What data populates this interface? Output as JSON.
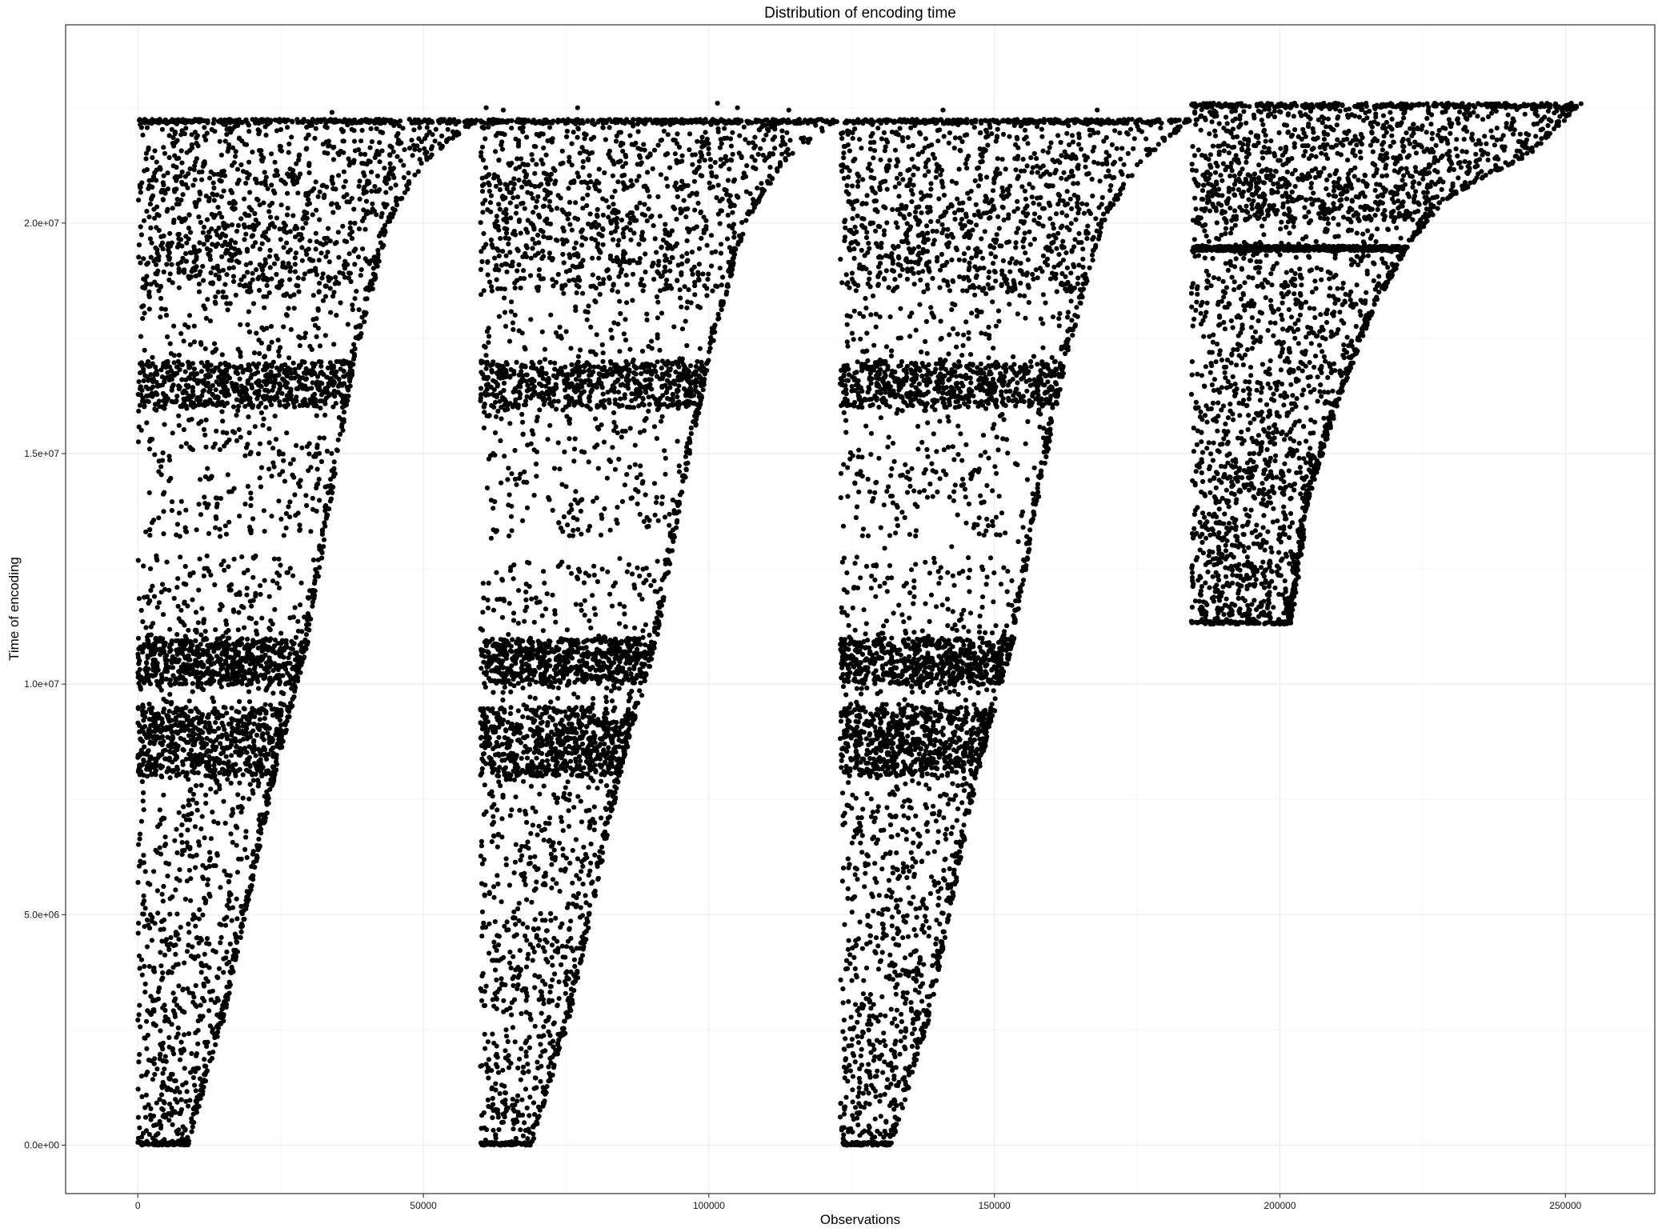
{
  "chart_data": {
    "type": "scatter",
    "title": "Distribution of encoding time",
    "xlabel": "Observations",
    "ylabel": "Time of encoding",
    "xlim": [
      -12650,
      265650
    ],
    "ylim": [
      -1050000,
      24300000
    ],
    "x_ticks": [
      0,
      50000,
      100000,
      150000,
      200000,
      250000
    ],
    "x_tick_labels": [
      "0",
      "50000",
      "100000",
      "150000",
      "200000",
      "250000"
    ],
    "y_ticks": [
      0,
      5000000,
      10000000,
      15000000,
      20000000
    ],
    "y_tick_labels": [
      "0.0e+00",
      "5.0e+06",
      "1.0e+07",
      "1.5e+07",
      "2.0e+07"
    ],
    "grid": true,
    "legend": "none",
    "point_color": "#000000",
    "series": [
      {
        "x_range": [
          0,
          59500
        ],
        "y_range": [
          0,
          22250000
        ],
        "lower_boundary": [
          [
            8800,
            0
          ],
          [
            15000,
            2700000
          ],
          [
            24000,
            8000000
          ],
          [
            30000,
            11000000
          ],
          [
            32800,
            13200000
          ],
          [
            38000,
            17000000
          ],
          [
            44000,
            20000000
          ],
          [
            50000,
            21300000
          ],
          [
            59500,
            22250000
          ]
        ],
        "dense_bands": [
          [
            8000000,
            9500000
          ],
          [
            10000000,
            11000000
          ],
          [
            16000000,
            17000000
          ],
          [
            18500000,
            22250000
          ]
        ],
        "sparse_bands": [
          [
            12800000,
            13200000
          ]
        ]
      },
      {
        "x_range": [
          60000,
          122500
        ],
        "y_range": [
          0,
          22250000
        ],
        "lower_boundary": [
          [
            69000,
            0
          ],
          [
            75500,
            2700000
          ],
          [
            84500,
            8000000
          ],
          [
            91000,
            11000000
          ],
          [
            94000,
            13200000
          ],
          [
            100000,
            17000000
          ],
          [
            106500,
            20000000
          ],
          [
            113000,
            21300000
          ],
          [
            122500,
            22250000
          ]
        ],
        "dense_bands": [
          [
            8000000,
            9500000
          ],
          [
            10000000,
            11000000
          ],
          [
            16000000,
            17000000
          ],
          [
            18500000,
            22250000
          ]
        ],
        "sparse_bands": [
          [
            12800000,
            13200000
          ]
        ]
      },
      {
        "x_range": [
          123000,
          184500
        ],
        "y_range": [
          0,
          22250000
        ],
        "lower_boundary": [
          [
            132000,
            0
          ],
          [
            138500,
            2700000
          ],
          [
            147000,
            8000000
          ],
          [
            153500,
            11000000
          ],
          [
            156500,
            13200000
          ],
          [
            162500,
            17000000
          ],
          [
            169000,
            20000000
          ],
          [
            175500,
            21300000
          ],
          [
            184500,
            22250000
          ]
        ],
        "dense_bands": [
          [
            8000000,
            9500000
          ],
          [
            10000000,
            11000000
          ],
          [
            16000000,
            17000000
          ],
          [
            18500000,
            22250000
          ]
        ],
        "sparse_bands": [
          [
            12800000,
            13200000
          ]
        ]
      },
      {
        "x_range": [
          184500,
          253000
        ],
        "y_range": [
          11300000,
          22600000
        ],
        "lower_boundary": [
          [
            202000,
            11300000
          ],
          [
            203500,
            12500000
          ],
          [
            205000,
            14000000
          ],
          [
            210000,
            16000000
          ],
          [
            216000,
            18000000
          ],
          [
            222500,
            19500000
          ],
          [
            229000,
            20500000
          ],
          [
            236000,
            21000000
          ],
          [
            244000,
            21500000
          ],
          [
            248000,
            22000000
          ],
          [
            253000,
            22600000
          ]
        ],
        "dense_bands": [
          [
            19400000,
            19500000
          ],
          [
            20000000,
            22600000
          ]
        ],
        "sparse_bands": []
      }
    ],
    "outliers": [
      [
        34000,
        22400000
      ],
      [
        61000,
        22500000
      ],
      [
        64000,
        22450000
      ],
      [
        77000,
        22500000
      ],
      [
        101500,
        22600000
      ],
      [
        105000,
        22500000
      ],
      [
        114000,
        22450000
      ],
      [
        141000,
        22450000
      ],
      [
        168000,
        22450000
      ],
      [
        201000,
        22500000
      ]
    ]
  }
}
